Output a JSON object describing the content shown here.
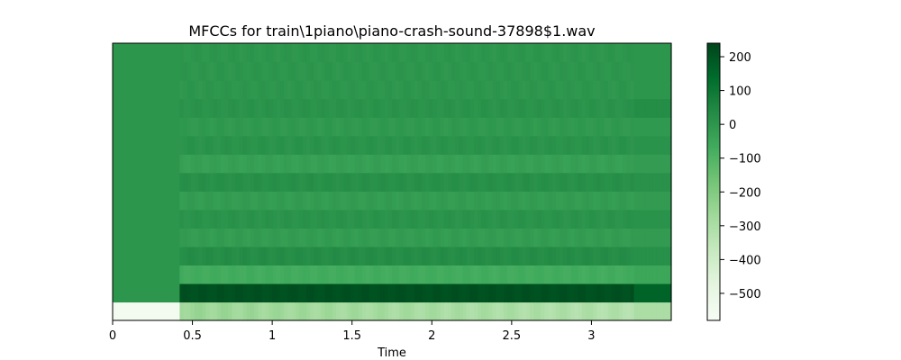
{
  "chart_data": {
    "type": "heatmap",
    "title": "MFCCs for train\\1piano\\piano-crash-sound-37898$1.wav",
    "xlabel": "Time",
    "ylabel": "",
    "xlim": [
      0,
      3.5
    ],
    "x_ticks": [
      {
        "value": 0,
        "label": "0"
      },
      {
        "value": 0.5,
        "label": "0.5"
      },
      {
        "value": 1,
        "label": "1"
      },
      {
        "value": 1.5,
        "label": "1.5"
      },
      {
        "value": 2,
        "label": "2"
      },
      {
        "value": 2.5,
        "label": "2.5"
      },
      {
        "value": 3,
        "label": "3"
      }
    ],
    "colormap": "Greens",
    "colorbar": {
      "range": [
        -580,
        240
      ],
      "ticks": [
        {
          "value": 200,
          "label": "200"
        },
        {
          "value": 100,
          "label": "100"
        },
        {
          "value": 0,
          "label": "0"
        },
        {
          "value": -100,
          "label": "−100"
        },
        {
          "value": -200,
          "label": "−200"
        },
        {
          "value": -300,
          "label": "−300"
        },
        {
          "value": -400,
          "label": "−400"
        },
        {
          "value": -500,
          "label": "−500"
        }
      ]
    },
    "n_coefficients": 15,
    "onset_time": 0.43,
    "end_segment_time": 3.27,
    "coefficient_levels_pre_onset": [
      -560,
      0,
      0,
      0,
      0,
      0,
      0,
      0,
      0,
      0,
      0,
      0,
      0,
      0,
      0
    ],
    "coefficient_levels": [
      -280,
      210,
      -70,
      30,
      -20,
      10,
      -20,
      20,
      -30,
      10,
      -10,
      10,
      0,
      0,
      0
    ],
    "coefficient_levels_end": [
      -300,
      160,
      -50,
      20,
      -15,
      10,
      -15,
      15,
      -20,
      10,
      -10,
      30,
      0,
      0,
      0
    ]
  }
}
